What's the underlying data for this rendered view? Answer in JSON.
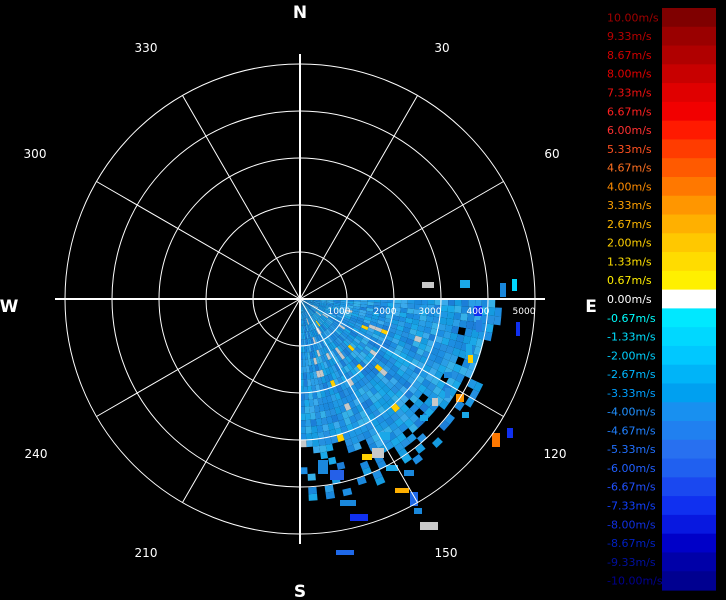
{
  "chart_data": {
    "type": "heatmap",
    "projection": "polar",
    "title": "",
    "cardinals": [
      "N",
      "E",
      "S",
      "W"
    ],
    "angle_labels": [
      "30",
      "60",
      "120",
      "150",
      "210",
      "240",
      "300",
      "330"
    ],
    "range_labels": [
      "1000",
      "2000",
      "3000",
      "4000",
      "5000"
    ],
    "range_max": 5000,
    "sector": {
      "azimuth_start": 90,
      "azimuth_end": 180,
      "range_min": 0,
      "range_max": 5000
    },
    "colorbar": {
      "labels": [
        "10.00m/s",
        "9.33m/s",
        "8.67m/s",
        "8.00m/s",
        "7.33m/s",
        "6.67m/s",
        "6.00m/s",
        "5.33m/s",
        "4.67m/s",
        "4.00m/s",
        "3.33m/s",
        "2.67m/s",
        "2.00m/s",
        "1.33m/s",
        "0.67m/s",
        "0.00m/s",
        "-0.67m/s",
        "-1.33m/s",
        "-2.00m/s",
        "-2.67m/s",
        "-3.33m/s",
        "-4.00m/s",
        "-4.67m/s",
        "-5.33m/s",
        "-6.00m/s",
        "-6.67m/s",
        "-7.33m/s",
        "-8.00m/s",
        "-8.67m/s",
        "-9.33m/s",
        "-10.00m/s"
      ],
      "colors": [
        "#7f0000",
        "#9a0000",
        "#b00000",
        "#c80000",
        "#e00000",
        "#f20000",
        "#ff1a00",
        "#ff3c00",
        "#ff5a00",
        "#ff7800",
        "#ff9600",
        "#ffb000",
        "#ffc800",
        "#ffdc00",
        "#fff000",
        "#ffffff",
        "#00e8ff",
        "#00d8ff",
        "#00c8ff",
        "#00b4f8",
        "#00a0f0",
        "#1890f0",
        "#2080f0",
        "#2870f0",
        "#2060f0",
        "#1a48f0",
        "#1030f0",
        "#0818e0",
        "#0000c8",
        "#0000a8",
        "#000090"
      ],
      "label_colors": [
        "#a00000",
        "#b80000",
        "#d00000",
        "#e00000",
        "#f01010",
        "#ff2020",
        "#ff3030",
        "#ff5020",
        "#ff7020",
        "#ff8c00",
        "#ffa000",
        "#ffb800",
        "#ffd000",
        "#ffe000",
        "#ffee00",
        "#ffffff",
        "#00ffff",
        "#00e0ff",
        "#00d0ff",
        "#00b8ff",
        "#00a0ff",
        "#2090ff",
        "#2080ff",
        "#2070ff",
        "#2060ff",
        "#2050ff",
        "#1040ff",
        "#1030e0",
        "#0020c0",
        "#0010a0",
        "#000090"
      ]
    }
  }
}
